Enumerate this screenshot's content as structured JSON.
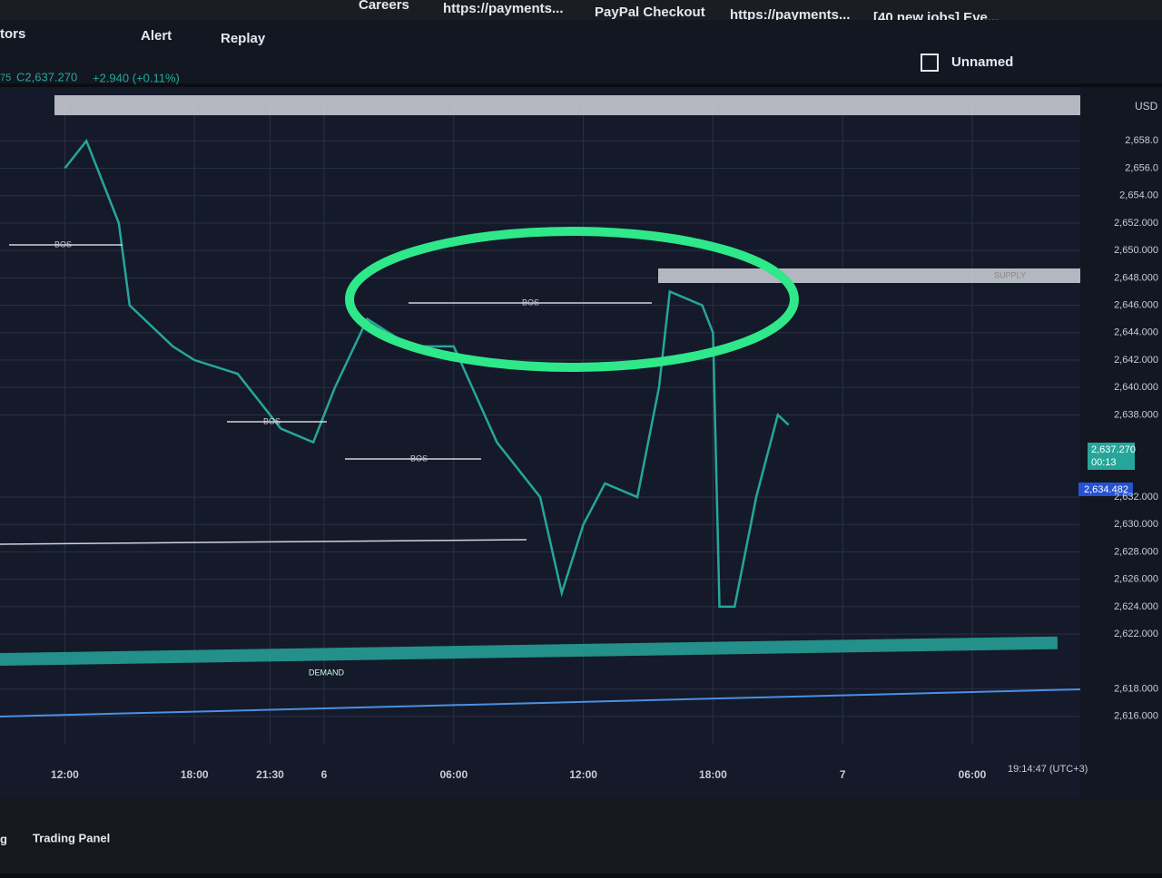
{
  "browser": {
    "bookmarks": [
      "Careers",
      "https://payments...",
      "PayPal Checkout",
      "https://payments...",
      "[40 new jobs] Eve..."
    ]
  },
  "toolbar": {
    "items": [
      "tors",
      "Alert",
      "Replay"
    ],
    "layout": "Unnamed"
  },
  "header": {
    "symbol_suffix": "75",
    "close": "C2,637.270",
    "change": "+2.940 (+0.11%)"
  },
  "annotations": {
    "bos": [
      "BOS",
      "BOS",
      "BOS",
      "BOS"
    ],
    "supply": "SUPPLY",
    "demand": "DEMAND"
  },
  "price_axis": {
    "currency": "USD",
    "tags": [
      "2,637.270",
      "00:13",
      "2,634.482"
    ]
  },
  "chart_data": {
    "type": "line",
    "x": [
      0,
      1,
      2.5,
      3,
      5,
      6,
      8,
      10,
      11.5,
      12.5,
      14,
      16,
      18,
      20,
      22,
      23,
      24,
      25,
      26.5,
      27.5,
      28,
      29.5,
      30,
      30.3,
      31,
      32,
      33,
      33.5
    ],
    "series": [
      {
        "color": "#26a69a",
        "values": [
          2656,
          2658,
          2652,
          2646,
          2643,
          2642,
          2641,
          2637,
          2636,
          2640,
          2645,
          2643,
          2643,
          2636,
          2632,
          2625,
          2630,
          2633,
          2632,
          2640,
          2647,
          2646,
          2644,
          2624,
          2624,
          2632,
          2638,
          2637.27
        ]
      }
    ],
    "xlim": [
      -3,
      47
    ],
    "xticks": [
      {
        "value": 0,
        "label": "12:00"
      },
      {
        "value": 6,
        "label": "18:00"
      },
      {
        "value": 9.5,
        "label": "21:30"
      },
      {
        "value": 12,
        "label": "6"
      },
      {
        "value": 18,
        "label": "06:00"
      },
      {
        "value": 24,
        "label": "12:00"
      },
      {
        "value": 30,
        "label": "18:00"
      },
      {
        "value": 36,
        "label": "7"
      },
      {
        "value": 42,
        "label": "06:00"
      }
    ],
    "ylim": [
      2614,
      2661
    ],
    "yticks": [
      {
        "value": 2616,
        "label": "2,616.000"
      },
      {
        "value": 2618,
        "label": "2,618.000"
      },
      {
        "value": 2622,
        "label": "2,622.000"
      },
      {
        "value": 2624,
        "label": "2,624.000"
      },
      {
        "value": 2626,
        "label": "2,626.000"
      },
      {
        "value": 2628,
        "label": "2,628.000"
      },
      {
        "value": 2630,
        "label": "2,630.000"
      },
      {
        "value": 2632,
        "label": "2,632.000"
      },
      {
        "value": 2638,
        "label": "2,638.000"
      },
      {
        "value": 2640,
        "label": "2,640.000"
      },
      {
        "value": 2642,
        "label": "2,642.000"
      },
      {
        "value": 2644,
        "label": "2,644.000"
      },
      {
        "value": 2646,
        "label": "2,646.000"
      },
      {
        "value": 2648,
        "label": "2,648.000"
      },
      {
        "value": 2650,
        "label": "2,650.000"
      },
      {
        "value": 2652,
        "label": "2,652.000"
      },
      {
        "value": 2654,
        "label": "2,654.00"
      },
      {
        "value": 2656,
        "label": "2,656.0"
      },
      {
        "value": 2658,
        "label": "2,658.0"
      }
    ],
    "grid": true
  },
  "time": "19:14:47 (UTC+3)",
  "panel": {
    "tabs": [
      "g",
      "Trading Panel"
    ]
  }
}
